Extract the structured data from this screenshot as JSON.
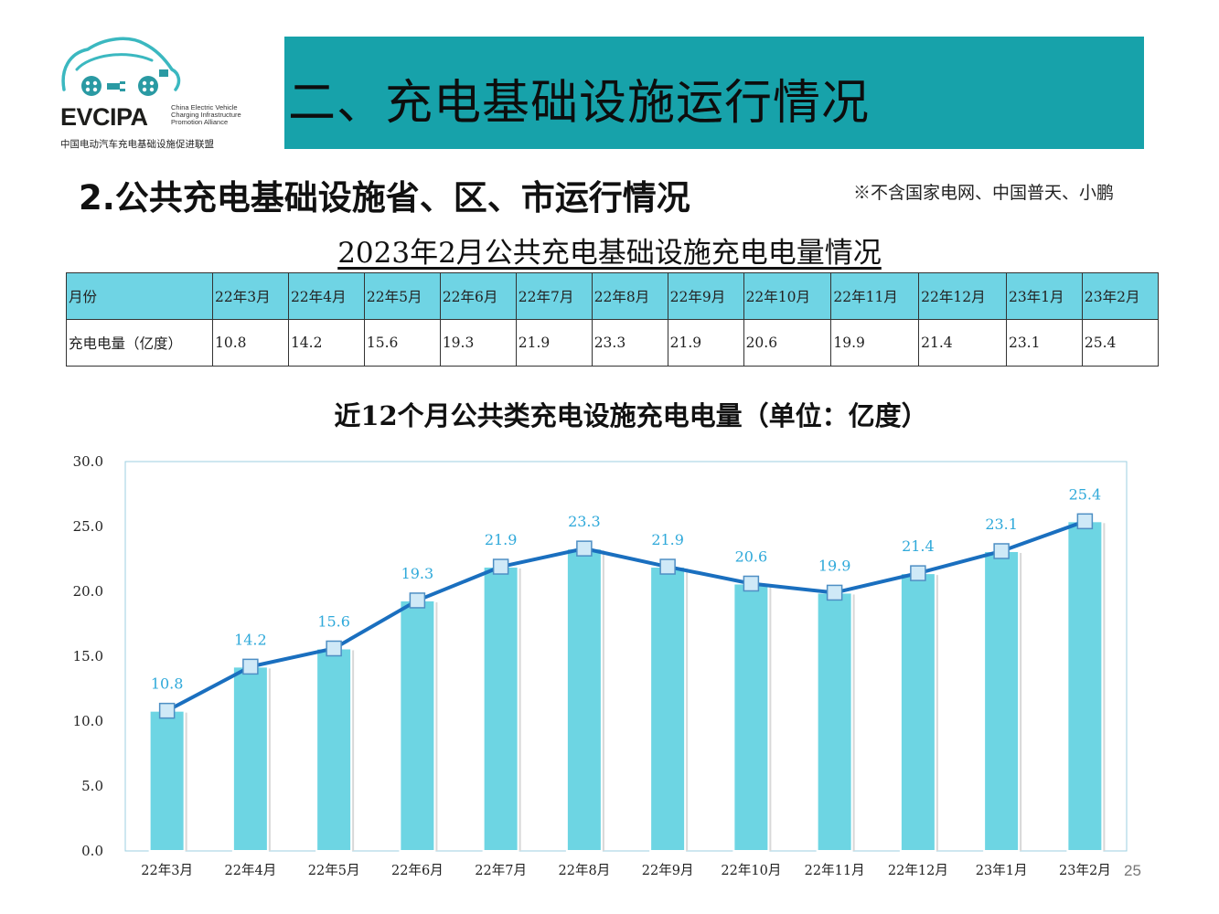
{
  "logo": {
    "brand": "EVCIPA",
    "english_lines": [
      "China Electric Vehicle",
      "Charging Infrastructure",
      "Promotion Alliance"
    ],
    "chinese_name": "中国电动汽车充电基础设施促进联盟"
  },
  "header": {
    "title": "二、充电基础设施运行情况"
  },
  "section": {
    "title": "2.公共充电基础设施省、区、市运行情况",
    "note": "※不含国家电网、中国普天、小鹏"
  },
  "table": {
    "title": "2023年2月公共充电基础设施充电电量情况",
    "header_label": "月份",
    "row_label": "充电电量（亿度）",
    "months": [
      "22年3月",
      "22年4月",
      "22年5月",
      "22年6月",
      "22年7月",
      "22年8月",
      "22年9月",
      "22年10月",
      "22年11月",
      "22年12月",
      "23年1月",
      "23年2月"
    ],
    "values": [
      "10.8",
      "14.2",
      "15.6",
      "19.3",
      "21.9",
      "23.3",
      "21.9",
      "20.6",
      "19.9",
      "21.4",
      "23.1",
      "25.4"
    ]
  },
  "colors": {
    "banner": "#17a2aa",
    "table_header": "#6fd4e4",
    "bar": "#6dd5e3",
    "line": "#1a6fbf",
    "data_label": "#2fa9da"
  },
  "chart_data": {
    "type": "bar",
    "title": "近12个月公共类充电设施充电电量（单位：亿度）",
    "categories": [
      "22年3月",
      "22年4月",
      "22年5月",
      "22年6月",
      "22年7月",
      "22年8月",
      "22年9月",
      "22年10月",
      "22年11月",
      "22年12月",
      "23年1月",
      "23年2月"
    ],
    "series": [
      {
        "values": [
          10.8,
          14.2,
          15.6,
          19.3,
          21.9,
          23.3,
          21.9,
          20.6,
          19.9,
          21.4,
          23.1,
          25.4
        ]
      }
    ],
    "overlay": "line-with-markers",
    "ylim": [
      0,
      30
    ],
    "yticks": [
      "0.0",
      "5.0",
      "10.0",
      "15.0",
      "20.0",
      "25.0",
      "30.0"
    ],
    "data_labels": [
      "10.8",
      "14.2",
      "15.6",
      "19.3",
      "21.9",
      "23.3",
      "21.9",
      "20.6",
      "19.9",
      "21.4",
      "23.1",
      "25.4"
    ],
    "grid": false,
    "legend": "none"
  },
  "page_number": "25"
}
